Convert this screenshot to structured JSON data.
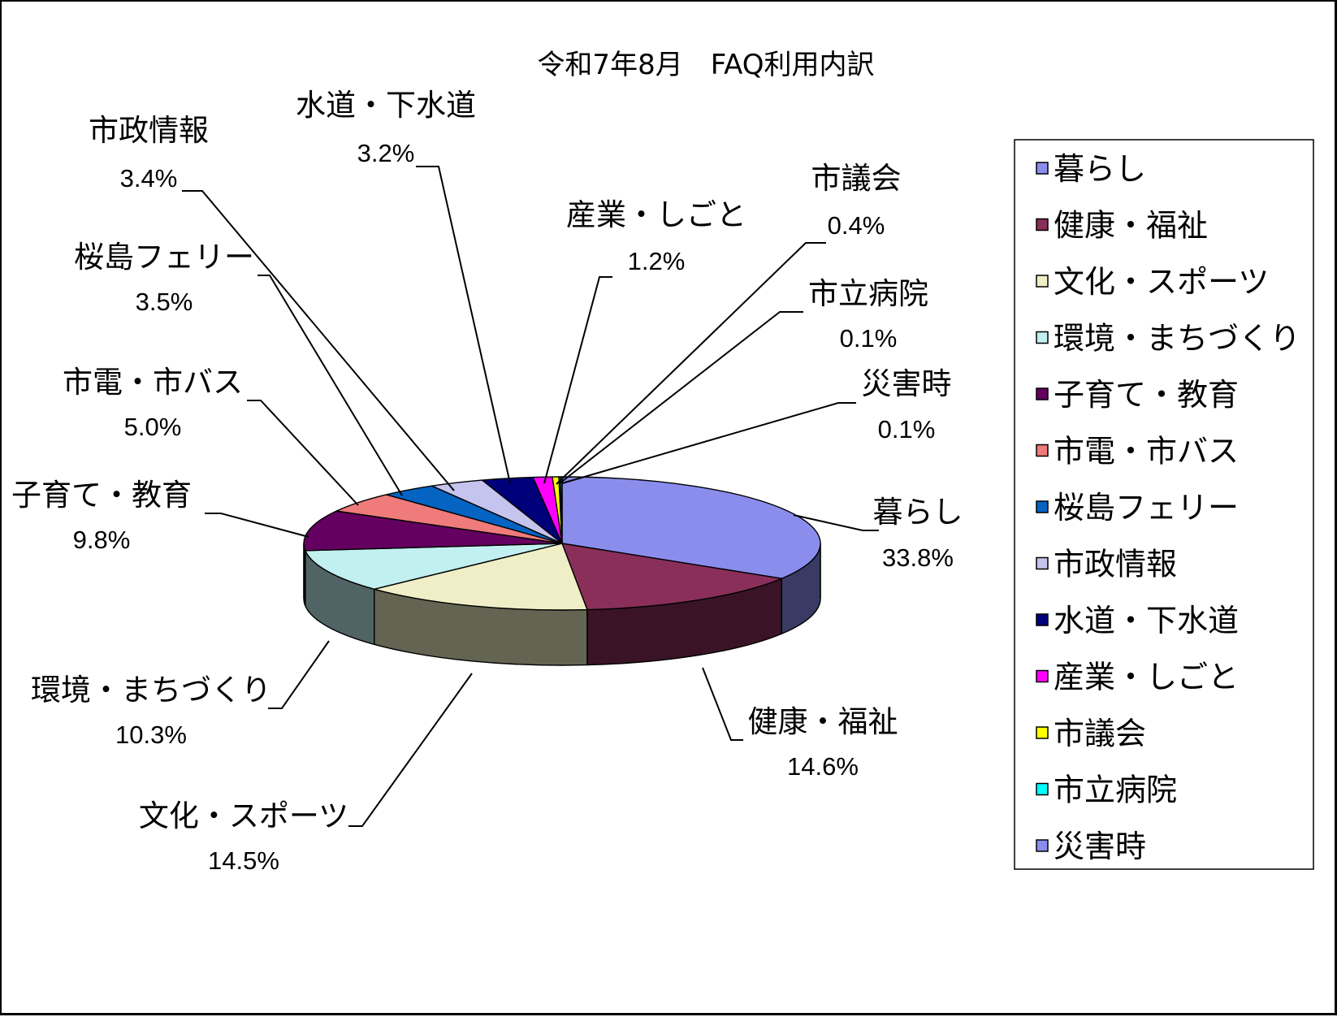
{
  "chart_data": {
    "type": "pie",
    "title": "令和7年8月　FAQ利用内訳",
    "categories": [
      "暮らし",
      "健康・福祉",
      "文化・スポーツ",
      "環境・まちづくり",
      "子育て・教育",
      "市電・市バス",
      "桜島フェリー",
      "市政情報",
      "水道・下水道",
      "産業・しごと",
      "市議会",
      "市立病院",
      "災害時"
    ],
    "values": [
      33.8,
      14.6,
      14.5,
      10.3,
      9.8,
      5.0,
      3.5,
      3.4,
      3.2,
      1.2,
      0.4,
      0.1,
      0.1
    ],
    "value_labels": [
      "33.8%",
      "14.6%",
      "14.5%",
      "10.3%",
      "9.8%",
      "5.0%",
      "3.5%",
      "3.4%",
      "3.2%",
      "1.2%",
      "0.4%",
      "0.1%",
      "0.1%"
    ],
    "colors": [
      "#8b8ded",
      "#8a2f5a",
      "#efeec6",
      "#c2eff0",
      "#64005f",
      "#ef7b7b",
      "#0563c1",
      "#c5c4ee",
      "#00007a",
      "#ff00ff",
      "#ffff00",
      "#00ffff",
      "#8b8ded"
    ],
    "legend_position": "right",
    "style": "3d-pie"
  }
}
